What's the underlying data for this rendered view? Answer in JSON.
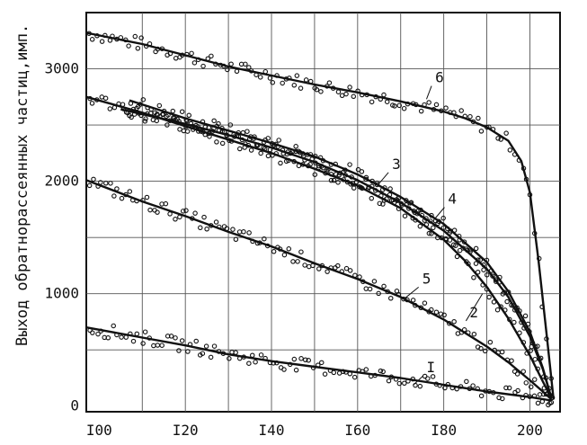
{
  "chart_data": {
    "type": "scatter",
    "ylabel": "Выход обратнорассеянных частиц,имп.",
    "xlabel": "",
    "xlim": [
      97,
      207
    ],
    "ylim": [
      -50,
      3500
    ],
    "grid": true,
    "x_ticks": [
      {
        "value": 100,
        "label": "I00"
      },
      {
        "value": 120,
        "label": "I20"
      },
      {
        "value": 140,
        "label": "I40"
      },
      {
        "value": 160,
        "label": "I60"
      },
      {
        "value": 180,
        "label": "I80"
      },
      {
        "value": 200,
        "label": "200"
      }
    ],
    "y_ticks": [
      {
        "value": 0,
        "label": "0"
      },
      {
        "value": 1000,
        "label": "1000"
      },
      {
        "value": 2000,
        "label": "2000"
      },
      {
        "value": 3000,
        "label": "3000"
      }
    ],
    "series": [
      {
        "name": "6",
        "x": [
          97,
          110,
          120,
          130,
          140,
          150,
          160,
          170,
          180,
          185,
          190,
          195,
          198,
          200,
          202,
          204,
          205.5
        ],
        "y": [
          3320,
          3220,
          3120,
          3020,
          2940,
          2860,
          2790,
          2710,
          2620,
          2560,
          2480,
          2360,
          2180,
          1900,
          1300,
          600,
          60
        ]
      },
      {
        "name": "3",
        "x": [
          107,
          120,
          130,
          140,
          150,
          160,
          170,
          180,
          190,
          195,
          200,
          203,
          205
        ],
        "y": [
          2720,
          2560,
          2450,
          2340,
          2220,
          2060,
          1860,
          1620,
          1280,
          1020,
          660,
          340,
          70
        ]
      },
      {
        "name": "4",
        "x": [
          105,
          120,
          130,
          140,
          150,
          160,
          170,
          180,
          190,
          195,
          200,
          203,
          205
        ],
        "y": [
          2640,
          2510,
          2410,
          2300,
          2170,
          2010,
          1810,
          1560,
          1220,
          970,
          620,
          330,
          70
        ]
      },
      {
        "name": "2",
        "x": [
          97,
          110,
          120,
          130,
          140,
          150,
          160,
          170,
          180,
          185,
          190,
          195,
          200,
          203,
          205
        ],
        "y": [
          2750,
          2610,
          2490,
          2370,
          2250,
          2110,
          1960,
          1760,
          1480,
          1290,
          1060,
          780,
          450,
          220,
          70
        ]
      },
      {
        "name": "5",
        "x": [
          97,
          110,
          120,
          130,
          140,
          150,
          160,
          170,
          180,
          190,
          195,
          200,
          203,
          205
        ],
        "y": [
          2010,
          1820,
          1690,
          1550,
          1420,
          1270,
          1130,
          970,
          770,
          530,
          390,
          230,
          130,
          60
        ]
      },
      {
        "name": "I",
        "x": [
          97,
          110,
          120,
          130,
          140,
          150,
          160,
          170,
          180,
          190,
          200,
          205
        ],
        "y": [
          700,
          610,
          540,
          460,
          400,
          350,
          300,
          250,
          190,
          130,
          80,
          50
        ]
      }
    ]
  }
}
